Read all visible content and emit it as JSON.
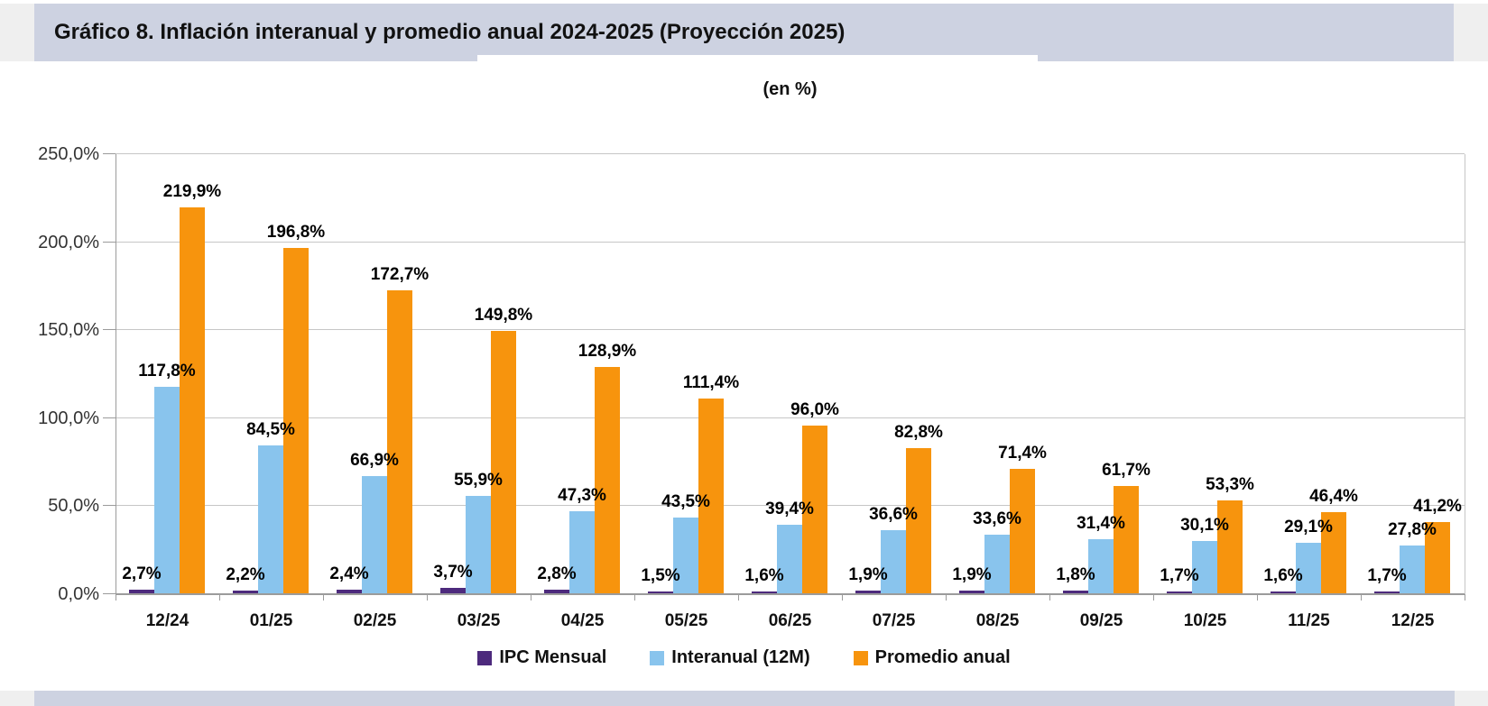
{
  "header": {
    "title": "Gráfico 8. Inflación interanual y promedio anual 2024-2025 (Proyección 2025)"
  },
  "colors": {
    "title_band": "#CDD2E1",
    "side_strip": "#EFEFEF",
    "gridline": "#C6C6C6",
    "axis": "#9B9B9B",
    "series_ipc": "#4D2A7D",
    "series_interanual": "#89C4ED",
    "series_promedio": "#F7940D"
  },
  "chart_data": {
    "type": "bar",
    "title": "Gráfico 8. Inflación interanual y promedio anual 2024-2025 (Proyección 2025)",
    "subtitle": "(en %)",
    "categories": [
      "12/24",
      "01/25",
      "02/25",
      "03/25",
      "04/25",
      "05/25",
      "06/25",
      "07/25",
      "08/25",
      "09/25",
      "10/25",
      "11/25",
      "12/25"
    ],
    "series": [
      {
        "name": "IPC Mensual",
        "color": "#4D2A7D",
        "values": [
          2.7,
          2.2,
          2.4,
          3.7,
          2.8,
          1.5,
          1.6,
          1.9,
          1.9,
          1.8,
          1.7,
          1.6,
          1.7
        ],
        "labels": [
          "2,7%",
          "2,2%",
          "2,4%",
          "3,7%",
          "2,8%",
          "1,5%",
          "1,6%",
          "1,9%",
          "1,9%",
          "1,8%",
          "1,7%",
          "1,6%",
          "1,7%"
        ]
      },
      {
        "name": "Interanual (12M)",
        "color": "#89C4ED",
        "values": [
          117.8,
          84.5,
          66.9,
          55.9,
          47.3,
          43.5,
          39.4,
          36.6,
          33.6,
          31.4,
          30.1,
          29.1,
          27.8
        ],
        "labels": [
          "117,8%",
          "84,5%",
          "66,9%",
          "55,9%",
          "47,3%",
          "43,5%",
          "39,4%",
          "36,6%",
          "33,6%",
          "31,4%",
          "30,1%",
          "29,1%",
          "27,8%"
        ]
      },
      {
        "name": "Promedio anual",
        "color": "#F7940D",
        "values": [
          219.9,
          196.8,
          172.7,
          149.8,
          128.9,
          111.4,
          96.0,
          82.8,
          71.4,
          61.7,
          53.3,
          46.4,
          41.2
        ],
        "labels": [
          "219,9%",
          "196,8%",
          "172,7%",
          "149,8%",
          "128,9%",
          "111,4%",
          "96,0%",
          "82,8%",
          "71,4%",
          "61,7%",
          "53,3%",
          "46,4%",
          "41,2%"
        ]
      }
    ],
    "ylim": [
      0,
      250
    ],
    "ytick_labels": [
      "0,0%",
      "50,0%",
      "100,0%",
      "150,0%",
      "200,0%",
      "250,0%"
    ],
    "xlabel": "",
    "ylabel": "",
    "grid": true,
    "legend_position": "bottom"
  }
}
